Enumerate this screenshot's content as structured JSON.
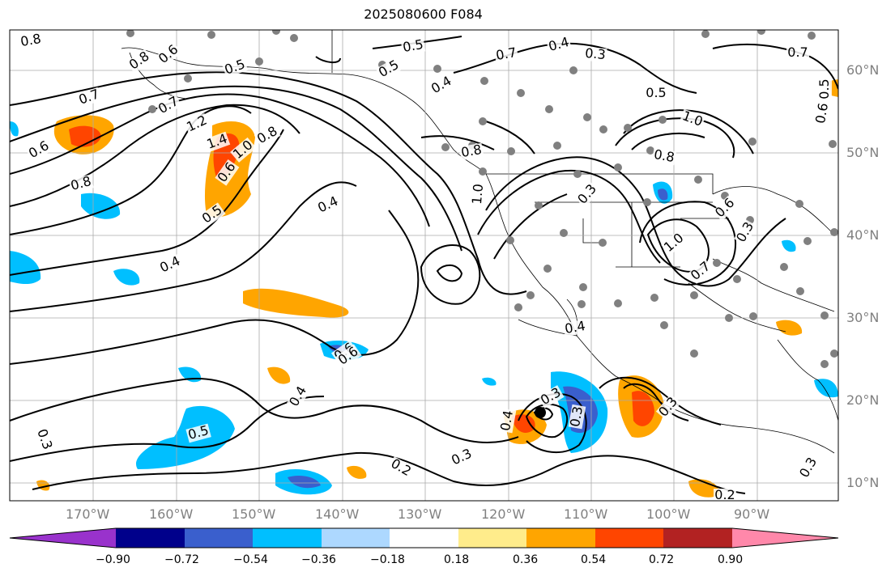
{
  "title": "2025080600 F084",
  "map": {
    "projection": "cylindrical",
    "lon_labels": [
      "170°W",
      "160°W",
      "150°W",
      "140°W",
      "130°W",
      "120°W",
      "110°W",
      "100°W",
      "90°W"
    ],
    "lat_labels": [
      "60°N",
      "50°N",
      "40°N",
      "30°N",
      "20°N",
      "10°N"
    ],
    "contour_labels": [
      "0.8",
      "0.8",
      "0.6",
      "0.5",
      "0.7",
      "0.7",
      "0.6",
      "0.8",
      "1.2",
      "1.4",
      "1.0",
      "0.8",
      "0.6",
      "0.5",
      "0.4",
      "0.4",
      "0.5",
      "0.5",
      "0.4",
      "0.6",
      "0.8",
      "1.0",
      "0.3",
      "0.7",
      "0.4",
      "0.3",
      "0.5",
      "1.0",
      "0.8",
      "0.6",
      "0.3",
      "1.0",
      "0.7",
      "0.4",
      "0.6",
      "0.4",
      "0.3",
      "0.3",
      "0.4",
      "0.3",
      "0.5",
      "0.3",
      "0.2",
      "0.3",
      "0.2",
      "0.7",
      "0.5",
      "0.6",
      "0.3"
    ],
    "grid": true,
    "station_marker_color": "#808080",
    "center_marker_color": "#000000"
  },
  "colorbar": {
    "ticks": [
      "−0.90",
      "−0.72",
      "−0.54",
      "−0.36",
      "−0.18",
      "0.18",
      "0.36",
      "0.54",
      "0.72",
      "0.90"
    ],
    "colors": [
      "#9932cc",
      "#00008b",
      "#3a5fcd",
      "#00bfff",
      "#add8ff",
      "#ffffff",
      "#ffec8b",
      "#ffa500",
      "#ff4500",
      "#b22222",
      "#ff88aa"
    ]
  }
}
